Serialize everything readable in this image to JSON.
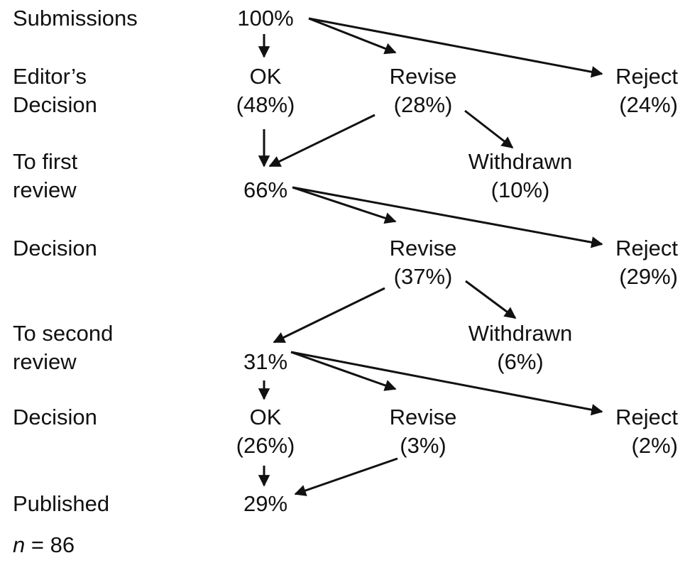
{
  "rows": {
    "submissions": "Submissions",
    "editors_decision": [
      "Editor’s",
      "Decision"
    ],
    "first_review": [
      "To first",
      "review"
    ],
    "decision_1": "Decision",
    "second_review": [
      "To second",
      "review"
    ],
    "decision_2": "Decision",
    "published": "Published"
  },
  "nodes": {
    "submissions_pct": "100%",
    "ok_1": [
      "OK",
      "(48%)"
    ],
    "revise_1": [
      "Revise",
      "(28%)"
    ],
    "reject_1": [
      "Reject",
      "(24%)"
    ],
    "first_review_pct": "66%",
    "withdrawn_1": [
      "Withdrawn",
      "(10%)"
    ],
    "revise_2": [
      "Revise",
      "(37%)"
    ],
    "reject_2": [
      "Reject",
      "(29%)"
    ],
    "second_review_pct": "31%",
    "withdrawn_2": [
      "Withdrawn",
      "(6%)"
    ],
    "ok_2": [
      "OK",
      "(26%)"
    ],
    "revise_3": [
      "Revise",
      "(3%)"
    ],
    "reject_3": [
      "Reject",
      "(2%)"
    ],
    "published_pct": "29%"
  },
  "footer": {
    "n_symbol": "n",
    "n_value": " = 86"
  },
  "colors": {
    "ink": "#111111",
    "background": "#ffffff"
  }
}
